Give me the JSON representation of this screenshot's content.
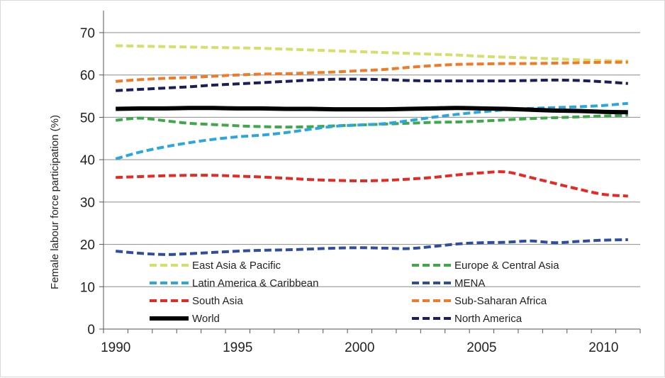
{
  "chart_data": {
    "type": "line",
    "title": "",
    "xlabel": "",
    "ylabel": "Female labour force participation (%)",
    "xlim": [
      1989.5,
      2011.5
    ],
    "ylim": [
      0,
      70
    ],
    "x_ticks": [
      "1990",
      "1995",
      "2000",
      "2005",
      "2010"
    ],
    "y_ticks": [
      "0",
      "10",
      "20",
      "30",
      "40",
      "50",
      "60",
      "70"
    ],
    "grid": "horizontal",
    "legend_position": "bottom-inside",
    "x": [
      1990,
      1991,
      1992,
      1993,
      1994,
      1995,
      1996,
      1997,
      1998,
      1999,
      2000,
      2001,
      2002,
      2003,
      2004,
      2005,
      2006,
      2007,
      2008,
      2009,
      2010,
      2011
    ],
    "series": [
      {
        "name": "East Asia & Pacific",
        "color": "#d4e06a",
        "dash": "dashed",
        "values": [
          66.9,
          66.8,
          66.7,
          66.6,
          66.5,
          66.4,
          66.3,
          66.1,
          65.9,
          65.7,
          65.5,
          65.3,
          65.1,
          64.9,
          64.7,
          64.4,
          64.2,
          64.0,
          63.8,
          63.6,
          63.4,
          63.3
        ]
      },
      {
        "name": "Europe & Central Asia",
        "color": "#3ea84a",
        "dash": "dashed",
        "values": [
          49.3,
          49.8,
          49.2,
          48.6,
          48.3,
          48.0,
          47.8,
          47.7,
          47.8,
          48.0,
          48.2,
          48.4,
          48.6,
          48.8,
          48.9,
          49.1,
          49.4,
          49.7,
          49.9,
          50.1,
          50.3,
          50.5
        ]
      },
      {
        "name": "Latin America & Caribbean",
        "color": "#2aa7e0",
        "dash": "dashed",
        "values": [
          40.2,
          41.8,
          43.0,
          44.0,
          44.8,
          45.4,
          45.8,
          46.4,
          47.2,
          47.9,
          48.2,
          48.5,
          49.2,
          50.0,
          50.7,
          51.3,
          51.8,
          52.1,
          52.3,
          52.5,
          52.8,
          53.3
        ]
      },
      {
        "name": "MENA",
        "color": "#2e4d9e",
        "dash": "dashed",
        "values": [
          18.4,
          17.9,
          17.6,
          17.8,
          18.1,
          18.4,
          18.6,
          18.7,
          18.9,
          19.1,
          19.2,
          19.1,
          19.0,
          19.5,
          20.1,
          20.4,
          20.5,
          20.8,
          20.4,
          20.7,
          21.0,
          21.1
        ]
      },
      {
        "name": "South Asia",
        "color": "#e42a25",
        "dash": "dashed",
        "values": [
          35.8,
          36.0,
          36.2,
          36.3,
          36.3,
          36.1,
          35.9,
          35.6,
          35.3,
          35.1,
          35.0,
          35.1,
          35.4,
          35.8,
          36.4,
          36.9,
          37.1,
          35.8,
          34.4,
          33.0,
          31.8,
          31.4
        ]
      },
      {
        "name": "Sub-Saharan Africa",
        "color": "#f07a26",
        "dash": "dashed",
        "values": [
          58.5,
          58.9,
          59.2,
          59.4,
          59.7,
          60.0,
          60.2,
          60.3,
          60.5,
          60.7,
          61.0,
          61.3,
          61.8,
          62.2,
          62.5,
          62.6,
          62.7,
          62.7,
          62.8,
          62.9,
          63.0,
          63.0
        ]
      },
      {
        "name": "World",
        "color": "#000000",
        "dash": "solid",
        "values": [
          52.0,
          52.1,
          52.1,
          52.2,
          52.2,
          52.1,
          52.1,
          52.0,
          52.0,
          51.9,
          51.9,
          51.9,
          52.0,
          52.1,
          52.2,
          52.1,
          52.0,
          51.8,
          51.6,
          51.5,
          51.3,
          51.2
        ]
      },
      {
        "name": "North America",
        "color": "#1a1f5a",
        "dash": "dashed",
        "values": [
          56.3,
          56.6,
          56.9,
          57.2,
          57.6,
          57.9,
          58.2,
          58.5,
          58.8,
          59.0,
          59.0,
          58.9,
          58.7,
          58.6,
          58.6,
          58.6,
          58.6,
          58.7,
          58.8,
          58.7,
          58.4,
          58.0
        ]
      }
    ]
  }
}
